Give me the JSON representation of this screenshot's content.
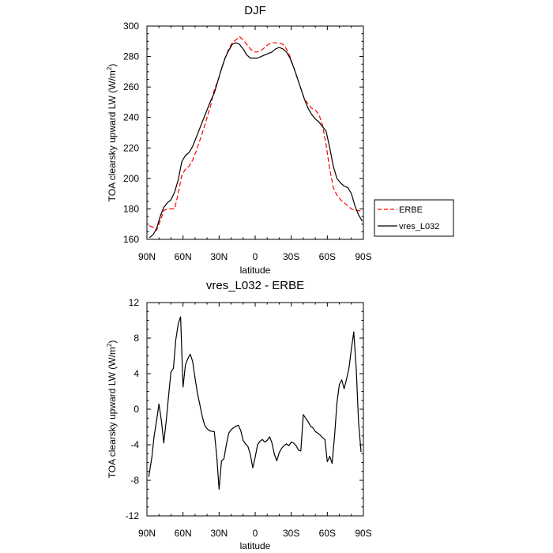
{
  "chart_data": [
    {
      "type": "line",
      "title": "DJF",
      "xlabel": "latitude",
      "ylabel": "TOA clearsky upward LW (W/m",
      "ylabel_sup": "2",
      "ylabel_close": ")",
      "xlim": [
        -90,
        90
      ],
      "ylim": [
        160,
        300
      ],
      "xticks": [
        -90,
        -60,
        -30,
        0,
        30,
        60,
        90
      ],
      "xtick_labels": [
        "90N",
        "60N",
        "30N",
        "0",
        "30S",
        "60S",
        "90S"
      ],
      "yticks": [
        160,
        180,
        200,
        220,
        240,
        260,
        280,
        300
      ],
      "ytick_labels": [
        "160",
        "180",
        "200",
        "220",
        "240",
        "260",
        "280",
        "300"
      ],
      "legend": "right",
      "series": [
        {
          "name": "ERBE",
          "color": "#ff0000",
          "dash": "dashed",
          "x": [
            -88,
            -85,
            -82,
            -79,
            -76,
            -73,
            -70,
            -67,
            -64,
            -61,
            -58,
            -55,
            -52,
            -49,
            -46,
            -43,
            -40,
            -37,
            -34,
            -31,
            -28,
            -25,
            -22,
            -19,
            -16,
            -13,
            -10,
            -7,
            -4,
            -1,
            2,
            5,
            8,
            11,
            14,
            17,
            20,
            23,
            26,
            29,
            32,
            35,
            38,
            41,
            44,
            47,
            50,
            53,
            56,
            59,
            62,
            65,
            68,
            71,
            74,
            77,
            80,
            83,
            86,
            89
          ],
          "values": [
            169,
            168,
            166,
            172,
            179,
            180,
            180,
            180,
            190,
            202,
            206,
            208,
            212,
            218,
            225,
            232,
            240,
            248,
            258,
            264,
            272,
            279,
            285,
            289,
            291,
            293,
            291,
            288,
            285,
            283,
            283,
            284,
            286,
            288,
            289,
            289,
            289,
            288,
            285,
            280,
            273,
            266,
            259,
            252,
            249,
            246,
            245,
            242,
            235,
            222,
            206,
            194,
            189,
            186,
            184,
            182,
            180,
            179,
            179,
            178
          ]
        },
        {
          "name": "vres_L032",
          "color": "#000000",
          "dash": "solid",
          "x": [
            -88,
            -85,
            -82,
            -79,
            -76,
            -73,
            -70,
            -67,
            -64,
            -61,
            -58,
            -55,
            -52,
            -49,
            -46,
            -43,
            -40,
            -37,
            -34,
            -31,
            -28,
            -25,
            -22,
            -19,
            -16,
            -13,
            -10,
            -7,
            -4,
            -1,
            2,
            5,
            8,
            11,
            14,
            17,
            20,
            23,
            26,
            29,
            32,
            35,
            38,
            41,
            44,
            47,
            50,
            53,
            56,
            59,
            62,
            65,
            68,
            71,
            74,
            77,
            80,
            83,
            86,
            89
          ],
          "values": [
            161,
            163,
            167,
            175,
            181,
            184,
            186,
            191,
            199,
            211,
            215,
            217,
            221,
            227,
            233,
            239,
            245,
            251,
            256,
            264,
            272,
            279,
            284,
            288,
            289,
            288,
            285,
            281,
            279,
            279,
            279,
            280,
            281,
            282,
            283,
            285,
            286,
            285,
            283,
            279,
            273,
            266,
            259,
            252,
            246,
            242,
            239,
            237,
            234,
            231,
            220,
            208,
            200,
            197,
            195,
            194,
            190,
            182,
            176,
            172
          ]
        }
      ]
    },
    {
      "type": "line",
      "title": "vres_L032 - ERBE",
      "xlabel": "latitude",
      "ylabel": "TOA clearsky upward LW (W/m",
      "ylabel_sup": "2",
      "ylabel_close": ")",
      "xlim": [
        -90,
        90
      ],
      "ylim": [
        -12,
        12
      ],
      "xticks": [
        -90,
        -60,
        -30,
        0,
        30,
        60,
        90
      ],
      "xtick_labels": [
        "90N",
        "60N",
        "30N",
        "0",
        "30S",
        "60S",
        "90S"
      ],
      "yticks": [
        -12,
        -8,
        -4,
        0,
        4,
        8,
        12
      ],
      "ytick_labels": [
        "-12",
        "-8",
        "-4",
        "0",
        "4",
        "8",
        "12"
      ],
      "series": [
        {
          "name": "vres_L032 - ERBE",
          "color": "#000000",
          "x": [
            -88.5,
            -86,
            -84,
            -82,
            -80,
            -78,
            -76,
            -74,
            -72,
            -70,
            -68,
            -66,
            -64,
            -62,
            -60,
            -58,
            -56,
            -54,
            -52,
            -50,
            -48,
            -46,
            -44,
            -42,
            -40,
            -38,
            -36,
            -34,
            -32,
            -30,
            -28,
            -26,
            -24,
            -22,
            -20,
            -18,
            -16,
            -14,
            -12,
            -10,
            -8,
            -6,
            -4,
            -2,
            0,
            2,
            4,
            6,
            8,
            10,
            12,
            14,
            16,
            18,
            20,
            22,
            24,
            26,
            28,
            30,
            32,
            34,
            36,
            38,
            40,
            42,
            44,
            46,
            48,
            50,
            52,
            54,
            56,
            58,
            60,
            62,
            64,
            66,
            68,
            70,
            72,
            74,
            76,
            78,
            80,
            82,
            84,
            86,
            88
          ],
          "values": [
            -7.6,
            -5.5,
            -3,
            -1.3,
            0.6,
            -1.3,
            -3.8,
            -1.3,
            1.5,
            4.2,
            4.6,
            7.8,
            9.6,
            10.4,
            2.5,
            5,
            5.7,
            6.2,
            5.4,
            3.5,
            1.8,
            0.5,
            -0.8,
            -1.8,
            -2.2,
            -2.4,
            -2.5,
            -2.5,
            -5.2,
            -9,
            -5.8,
            -5.6,
            -4,
            -2.7,
            -2.3,
            -2.1,
            -1.9,
            -1.8,
            -2.4,
            -3.5,
            -3.9,
            -4.2,
            -5.1,
            -6.6,
            -5.4,
            -4,
            -3.6,
            -3.4,
            -3.7,
            -3.5,
            -3.1,
            -3.8,
            -5.1,
            -5.8,
            -4.9,
            -4.4,
            -4.1,
            -3.9,
            -4.1,
            -3.7,
            -3.8,
            -4.1,
            -4.6,
            -4.7,
            -0.6,
            -1,
            -1.4,
            -1.9,
            -2.1,
            -2.5,
            -2.7,
            -2.9,
            -3.2,
            -3.4,
            -5.9,
            -5.3,
            -6.1,
            -3,
            0.7,
            2.8,
            3.3,
            2.3,
            3.4,
            4.6,
            6.8,
            8.7,
            4.6,
            -1.5,
            -4.8
          ]
        }
      ]
    }
  ]
}
